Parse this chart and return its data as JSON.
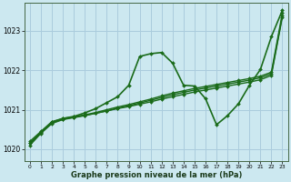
{
  "background_color": "#cce8f0",
  "grid_color": "#aaccdd",
  "line_color": "#1a6b1a",
  "title": "Graphe pression niveau de la mer (hPa)",
  "xlim": [
    -0.5,
    23.5
  ],
  "ylim": [
    1019.7,
    1023.7
  ],
  "yticks": [
    1020,
    1021,
    1022,
    1023
  ],
  "xticks": [
    0,
    1,
    2,
    3,
    4,
    5,
    6,
    7,
    8,
    9,
    10,
    11,
    12,
    13,
    14,
    15,
    16,
    17,
    18,
    19,
    20,
    21,
    22,
    23
  ],
  "series": [
    {
      "y": [
        1020.2,
        1020.45,
        1020.7,
        1020.78,
        1020.82,
        1020.87,
        1020.93,
        1021.0,
        1021.07,
        1021.13,
        1021.2,
        1021.27,
        1021.35,
        1021.42,
        1021.48,
        1021.54,
        1021.59,
        1021.64,
        1021.69,
        1021.74,
        1021.79,
        1021.85,
        1021.95,
        1023.45
      ],
      "markers": true,
      "linewidth": 1.0
    },
    {
      "y": [
        1020.15,
        1020.42,
        1020.67,
        1020.76,
        1020.81,
        1020.86,
        1020.91,
        1020.97,
        1021.04,
        1021.1,
        1021.17,
        1021.24,
        1021.31,
        1021.38,
        1021.44,
        1021.5,
        1021.55,
        1021.6,
        1021.65,
        1021.7,
        1021.75,
        1021.81,
        1021.91,
        1023.38
      ],
      "markers": true,
      "linewidth": 1.0
    },
    {
      "y": [
        1020.1,
        1020.4,
        1020.65,
        1020.75,
        1020.8,
        1020.85,
        1020.91,
        1020.97,
        1021.03,
        1021.08,
        1021.14,
        1021.2,
        1021.27,
        1021.33,
        1021.39,
        1021.45,
        1021.5,
        1021.55,
        1021.6,
        1021.65,
        1021.7,
        1021.76,
        1021.87,
        1023.35
      ],
      "markers": true,
      "linewidth": 1.0
    },
    {
      "y": [
        1020.15,
        1020.43,
        1020.68,
        1020.78,
        1020.83,
        1020.92,
        1021.03,
        1021.18,
        1021.33,
        1021.62,
        1022.35,
        1022.42,
        1022.45,
        1022.18,
        1021.62,
        1021.6,
        1021.28,
        1020.62,
        1020.85,
        1021.15,
        1021.62,
        1022.02,
        1022.85,
        1023.52
      ],
      "markers": true,
      "linewidth": 1.2
    }
  ]
}
